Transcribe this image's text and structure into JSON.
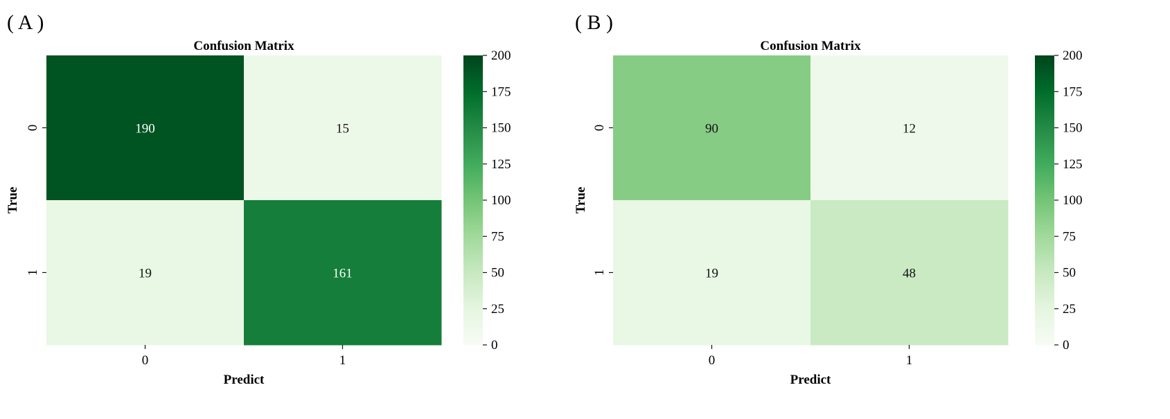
{
  "panels": [
    {
      "label": "( A )"
    },
    {
      "label": "( B )"
    }
  ],
  "chart_data": [
    {
      "type": "heatmap",
      "title": "Confusion Matrix",
      "xlabel": "Predict",
      "ylabel": "True",
      "x_categories": [
        "0",
        "1"
      ],
      "y_categories": [
        "0",
        "1"
      ],
      "values": [
        [
          190,
          15
        ],
        [
          19,
          161
        ]
      ],
      "colorscale": "Greens",
      "colorbar": {
        "min": 0,
        "max": 200,
        "ticks": [
          0,
          25,
          50,
          75,
          100,
          125,
          150,
          175,
          200
        ]
      }
    },
    {
      "type": "heatmap",
      "title": "Confusion Matrix",
      "xlabel": "Predict",
      "ylabel": "True",
      "x_categories": [
        "0",
        "1"
      ],
      "y_categories": [
        "0",
        "1"
      ],
      "values": [
        [
          90,
          12
        ],
        [
          19,
          48
        ]
      ],
      "colorscale": "Greens",
      "colorbar": {
        "min": 0,
        "max": 200,
        "ticks": [
          0,
          25,
          50,
          75,
          100,
          125,
          150,
          175,
          200
        ]
      }
    }
  ]
}
